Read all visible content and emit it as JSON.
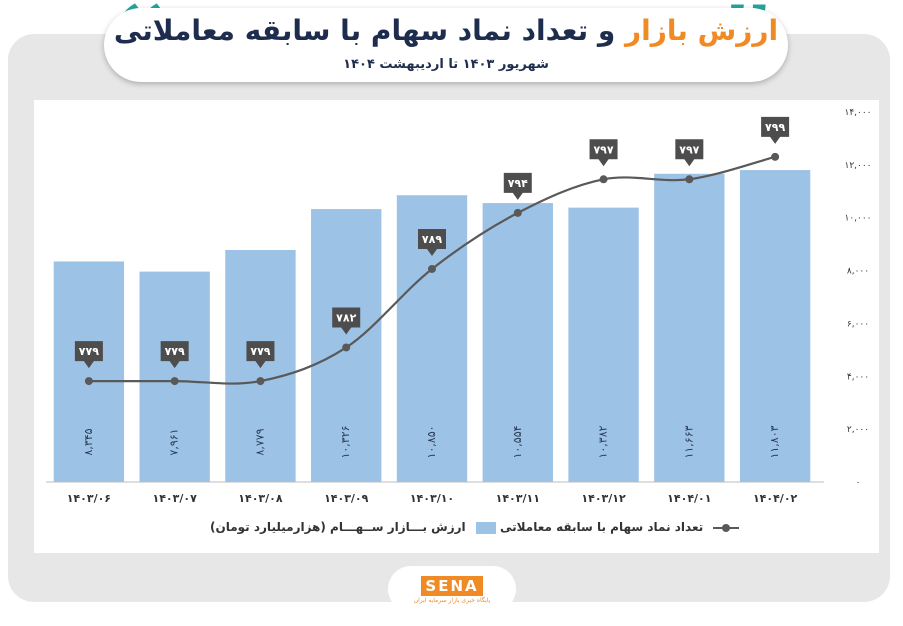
{
  "header": {
    "title_accent": "ارزش بازار",
    "title_rest": " و تعداد نماد سهام با سابقه معاملاتی",
    "subtitle": "شهریور ۱۴۰۳ تا اردیبهشت ۱۴۰۴",
    "quote_left_glyph": "“",
    "quote_right_glyph": "”",
    "accent_color": "#f08a24",
    "quote_color": "#27a39c"
  },
  "legend": {
    "bar_label": "ارزش بـــازار ســهـــام (هزارمیلیارد تومان)",
    "line_label": "تعداد نماد سهام با سابقه معاملاتی"
  },
  "logo": {
    "name": "SENA",
    "tagline": "پایگاه خبری بازار سرمایه ایران"
  },
  "chart_data": {
    "type": "bar",
    "categories": [
      "۱۴۰۳/۰۶",
      "۱۴۰۳/۰۷",
      "۱۴۰۳/۰۸",
      "۱۴۰۳/۰۹",
      "۱۴۰۳/۱۰",
      "۱۴۰۳/۱۱",
      "۱۴۰۳/۱۲",
      "۱۴۰۴/۰۱",
      "۱۴۰۴/۰۲"
    ],
    "series": [
      {
        "name": "ارزش بـــازار ســهـــام (هزارمیلیارد تومان)",
        "kind": "bar",
        "values": [
          8345,
          7961,
          8779,
          10326,
          10850,
          10554,
          10382,
          11663,
          11803
        ],
        "labels": [
          "۸,۳۴۵",
          "۷,۹۶۱",
          "۸,۷۷۹",
          "۱۰,۳۲۶",
          "۱۰,۸۵۰",
          "۱۰,۵۵۴",
          "۱۰,۳۸۲",
          "۱۱,۶۶۳",
          "۱۱,۸۰۳"
        ],
        "color": "#9cc2e6"
      },
      {
        "name": "تعداد نماد سهام با سابقه معاملاتی",
        "kind": "line",
        "values": [
          779,
          779,
          779,
          782,
          789,
          794,
          797,
          797,
          799
        ],
        "labels": [
          "۷۷۹",
          "۷۷۹",
          "۷۷۹",
          "۷۸۲",
          "۷۸۹",
          "۷۹۴",
          "۷۹۷",
          "۷۹۷",
          "۷۹۹"
        ],
        "color": "#595959",
        "ylim": [
          770,
          803
        ]
      }
    ],
    "ylim": [
      0,
      14000
    ],
    "yticks": [
      0,
      2000,
      4000,
      6000,
      8000,
      10000,
      12000,
      14000
    ],
    "ytick_labels": [
      "۰",
      "۲,۰۰۰",
      "۴,۰۰۰",
      "۶,۰۰۰",
      "۸,۰۰۰",
      "۱۰,۰۰۰",
      "۱۲,۰۰۰",
      "۱۴,۰۰۰"
    ],
    "xlabel": "",
    "ylabel": "",
    "grid": false,
    "legend_position": "bottom",
    "y_axis_side": "right"
  }
}
